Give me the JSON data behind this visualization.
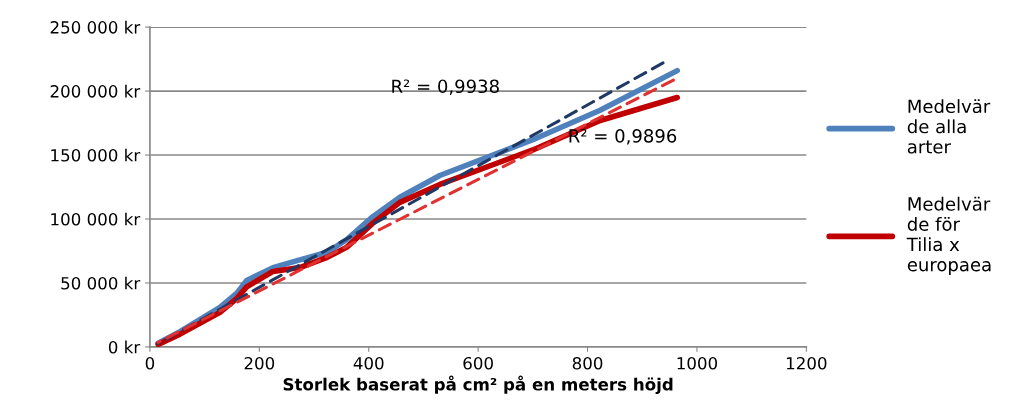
{
  "chart_data": {
    "type": "line",
    "xlabel": "Storlek baserat på cm² på en meters höjd",
    "series": [
      {
        "name": "Medelvär\nde alla\narter",
        "color": "#4f81bd",
        "x": [
          15,
          55,
          128,
          159,
          177,
          225,
          274,
          324,
          360,
          408,
          457,
          530,
          700,
          823,
          964
        ],
        "values": [
          3000,
          12000,
          31000,
          42000,
          52000,
          62000,
          68000,
          74000,
          84000,
          102000,
          117000,
          134000,
          162000,
          185000,
          216000
        ]
      },
      {
        "name": "Medelvär\nde för\nTilia x\neuropaea",
        "color": "#c00000",
        "x": [
          15,
          55,
          128,
          159,
          177,
          225,
          274,
          324,
          360,
          408,
          457,
          530,
          700,
          823,
          964
        ],
        "values": [
          2000,
          10000,
          27000,
          38000,
          47000,
          59000,
          62000,
          70000,
          78000,
          97000,
          113000,
          127000,
          154000,
          177000,
          195000
        ]
      },
      {
        "color": "#1f3864",
        "line_style": "dashed",
        "x": [
          15,
          938
        ],
        "values": [
          2600,
          222000
        ]
      },
      {
        "color": "#e03030",
        "line_style": "dashed",
        "x": [
          15,
          957
        ],
        "values": [
          3600,
          208600
        ]
      }
    ],
    "xlim": [
      0,
      1200
    ],
    "xticks": [
      0,
      200,
      400,
      600,
      800,
      1000,
      1200
    ],
    "ylim": [
      0,
      250000
    ],
    "yticks": [
      {
        "value": 0,
        "label": "0 kr"
      },
      {
        "value": 50000,
        "label": "50 000 kr"
      },
      {
        "value": 100000,
        "label": "100 000 kr"
      },
      {
        "value": 150000,
        "label": "150 000 kr"
      },
      {
        "value": 200000,
        "label": "200 000 kr"
      },
      {
        "value": 250000,
        "label": "250 000 kr"
      }
    ],
    "grid": "y",
    "legend": "right",
    "marker": "none",
    "annotations": [
      "R² = 0,9938",
      "R² = 0,9896"
    ]
  }
}
